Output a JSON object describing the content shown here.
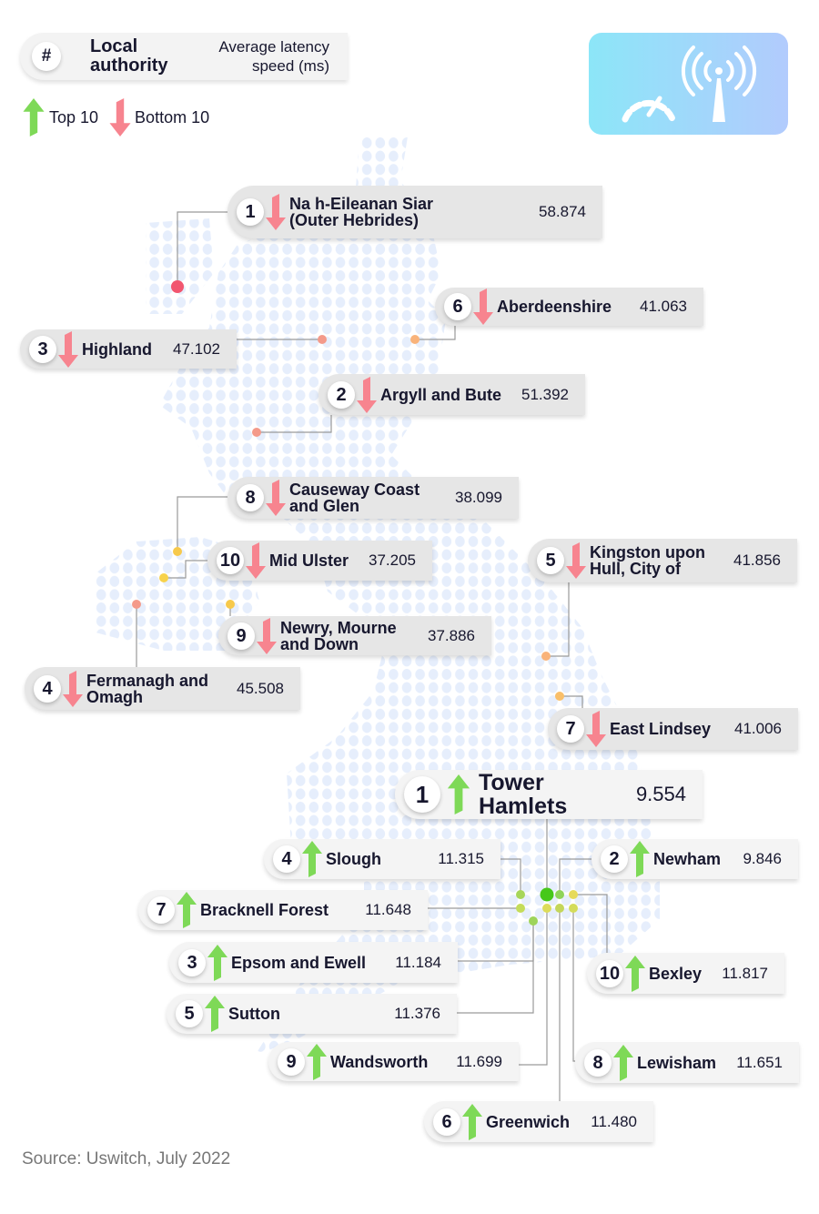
{
  "header": {
    "rank_symbol": "#",
    "col_authority": "Local authority",
    "col_speed": "Average latency speed (ms)"
  },
  "legend": {
    "top_label": "Top 10",
    "bottom_label": "Bottom 10"
  },
  "icon": {
    "name": "speedometer-antenna-icon"
  },
  "colors": {
    "top_arrow": "#7ed957",
    "bottom_arrow": "#f7848f",
    "worst_marker": "#f2566f",
    "best_marker": "#46c81a"
  },
  "bottom10": [
    {
      "rank": "1",
      "name_lines": [
        "Na h-Eileanan Siar",
        "(Outer Hebrides)"
      ],
      "value": "58.874"
    },
    {
      "rank": "6",
      "name_lines": [
        "Aberdeenshire"
      ],
      "value": "41.063"
    },
    {
      "rank": "3",
      "name_lines": [
        "Highland"
      ],
      "value": "47.102"
    },
    {
      "rank": "2",
      "name_lines": [
        "Argyll and Bute"
      ],
      "value": "51.392"
    },
    {
      "rank": "8",
      "name_lines": [
        "Causeway Coast",
        "and Glen"
      ],
      "value": "38.099"
    },
    {
      "rank": "10",
      "name_lines": [
        "Mid Ulster"
      ],
      "value": "37.205"
    },
    {
      "rank": "5",
      "name_lines": [
        "Kingston upon",
        "Hull, City of"
      ],
      "value": "41.856"
    },
    {
      "rank": "9",
      "name_lines": [
        "Newry, Mourne",
        "and Down"
      ],
      "value": "37.886"
    },
    {
      "rank": "4",
      "name_lines": [
        "Fermanagh and",
        "Omagh"
      ],
      "value": "45.508"
    },
    {
      "rank": "7",
      "name_lines": [
        "East Lindsey"
      ],
      "value": "41.006"
    }
  ],
  "top10": [
    {
      "rank": "1",
      "name_lines": [
        "Tower Hamlets"
      ],
      "value": "9.554"
    },
    {
      "rank": "4",
      "name_lines": [
        "Slough"
      ],
      "value": "11.315"
    },
    {
      "rank": "2",
      "name_lines": [
        "Newham"
      ],
      "value": "9.846"
    },
    {
      "rank": "7",
      "name_lines": [
        "Bracknell Forest"
      ],
      "value": "11.648"
    },
    {
      "rank": "3",
      "name_lines": [
        "Epsom and Ewell"
      ],
      "value": "11.184"
    },
    {
      "rank": "10",
      "name_lines": [
        "Bexley"
      ],
      "value": "11.817"
    },
    {
      "rank": "5",
      "name_lines": [
        "Sutton"
      ],
      "value": "11.376"
    },
    {
      "rank": "9",
      "name_lines": [
        "Wandsworth"
      ],
      "value": "11.699"
    },
    {
      "rank": "8",
      "name_lines": [
        "Lewisham"
      ],
      "value": "11.651"
    },
    {
      "rank": "6",
      "name_lines": [
        "Greenwich"
      ],
      "value": "11.480"
    }
  ],
  "source": "Source: Uswitch, July 2022"
}
